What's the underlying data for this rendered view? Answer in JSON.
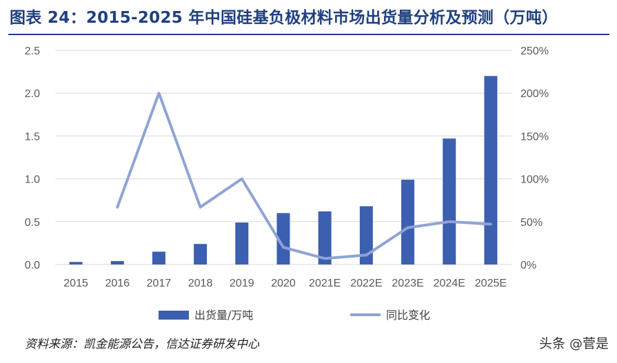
{
  "title": "图表 24：2015-2025 年中国硅基负极材料市场出货量分析及预测（万吨）",
  "source": "资料来源：凯金能源公告，信达证券研发中心",
  "watermark": "头条 @菅是",
  "colors": {
    "bar": "#3c5fb0",
    "line": "#8fa3d4",
    "title": "#1f3f7f",
    "grid": "#d9d9d9"
  },
  "chart_data": {
    "type": "bar",
    "categories": [
      "2015",
      "2016",
      "2017",
      "2018",
      "2019",
      "2020",
      "2021E",
      "2022E",
      "2023E",
      "2024E",
      "2025E"
    ],
    "series": [
      {
        "name": "出货量/万吨",
        "type": "bar",
        "axis": "left",
        "values": [
          0.03,
          0.04,
          0.15,
          0.24,
          0.49,
          0.6,
          0.62,
          0.68,
          0.99,
          1.47,
          2.2
        ]
      },
      {
        "name": "同比变化",
        "type": "line",
        "axis": "right",
        "values": [
          null,
          0.67,
          2.0,
          0.67,
          1.0,
          0.2,
          0.07,
          0.11,
          0.43,
          0.5,
          0.47
        ]
      }
    ],
    "y_left": {
      "min": 0,
      "max": 2.5,
      "ticks": [
        "0.0",
        "0.5",
        "1.0",
        "1.5",
        "2.0",
        "2.5"
      ]
    },
    "y_right": {
      "min": 0,
      "max": 2.5,
      "ticks": [
        "0%",
        "50%",
        "100%",
        "150%",
        "200%",
        "250%"
      ]
    },
    "grid": true,
    "legend": "bottom"
  }
}
